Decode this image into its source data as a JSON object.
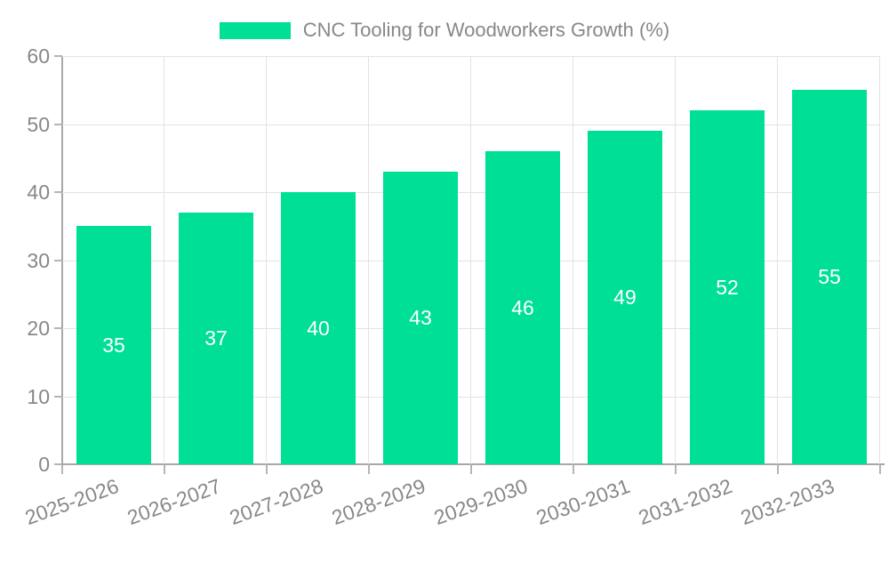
{
  "legend": {
    "label": "CNC Tooling for Woodworkers Growth (%)"
  },
  "chart_data": {
    "type": "bar",
    "title": "CNC Tooling for Woodworkers Growth (%)",
    "categories": [
      "2025-2026",
      "2026-2027",
      "2027-2028",
      "2028-2029",
      "2029-2030",
      "2030-2031",
      "2031-2032",
      "2032-2033"
    ],
    "values": [
      35,
      37,
      40,
      43,
      46,
      49,
      52,
      55
    ],
    "value_labels": [
      "35",
      "37",
      "40",
      "43",
      "46",
      "49",
      "52",
      "55"
    ],
    "xlabel": "",
    "ylabel": "",
    "ylim": [
      0,
      60
    ],
    "yticks": [
      0,
      10,
      20,
      30,
      40,
      50,
      60
    ],
    "grid": true,
    "legend_position": "top-center",
    "x_tick_rotation_deg": -20,
    "colors": {
      "bar": "#00DF96",
      "text": "#888888",
      "axis_line": "#a8a8a8",
      "gridline": "#e3e3e3",
      "tick_mark": "#b5b5b5",
      "value_label": "#ffffff",
      "background": "#ffffff"
    }
  }
}
